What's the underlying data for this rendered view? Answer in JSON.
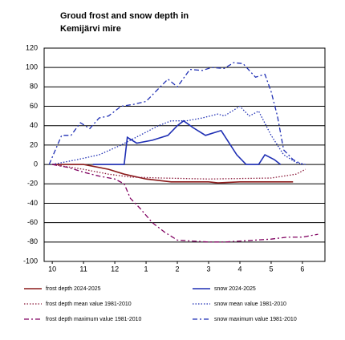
{
  "chart_data": {
    "type": "line",
    "title": "Groud frost and snow depth in Kemijärvi mire",
    "xlim": [
      -0.26,
      8.72
    ],
    "xticks": [
      {
        "value": 0,
        "label": "10"
      },
      {
        "value": 1,
        "label": "11"
      },
      {
        "value": 2,
        "label": "12"
      },
      {
        "value": 3,
        "label": "1"
      },
      {
        "value": 4,
        "label": "2"
      },
      {
        "value": 5,
        "label": "3"
      },
      {
        "value": 6,
        "label": "4"
      },
      {
        "value": 7,
        "label": "5"
      },
      {
        "value": 8,
        "label": "6"
      }
    ],
    "ylim": [
      -100,
      120
    ],
    "yticks": [
      -100,
      -80,
      -60,
      -40,
      -20,
      0,
      20,
      40,
      60,
      80,
      100,
      120
    ],
    "grid": true,
    "legend": "bottom",
    "series": [
      {
        "name": "frost depth 2024-2025",
        "color": "#8b1a1a",
        "dash": "solid",
        "x": [
          0,
          1.0,
          1.8,
          2.3,
          3.0,
          3.8,
          5.0,
          5.3,
          6.0,
          7.7
        ],
        "values": [
          0,
          0,
          -5,
          -10,
          -15,
          -18,
          -18,
          -19,
          -18,
          -18
        ]
      },
      {
        "name": "snow 2024-2025",
        "color": "#1f2fb4",
        "dash": "solid",
        "x": [
          1.3,
          2.3,
          2.4,
          2.7,
          3.2,
          3.7,
          4.0,
          4.2,
          4.5,
          4.9,
          5.4,
          5.9,
          6.2,
          6.6,
          6.8,
          7.1,
          7.3
        ],
        "values": [
          0,
          0,
          28,
          22,
          25,
          30,
          40,
          45,
          38,
          30,
          35,
          10,
          0,
          0,
          10,
          5,
          0
        ]
      },
      {
        "name": "frost depth mean value 1981-2010",
        "color": "#8b1a3a",
        "dash": "dotted",
        "x": [
          0,
          1.0,
          1.8,
          2.5,
          3.5,
          5.0,
          7.0,
          7.8,
          8.1
        ],
        "values": [
          0,
          -5,
          -10,
          -13,
          -14,
          -15,
          -14,
          -10,
          -5
        ]
      },
      {
        "name": "snow mean value 1981-2010",
        "color": "#1f2fb4",
        "dash": "dotted",
        "x": [
          0,
          0.8,
          1.5,
          2.2,
          2.8,
          3.4,
          3.8,
          4.3,
          4.8,
          5.3,
          5.5,
          6.0,
          6.3,
          6.6,
          7.0,
          7.4,
          7.8,
          8.1
        ],
        "values": [
          0,
          5,
          10,
          20,
          30,
          40,
          45,
          45,
          48,
          52,
          50,
          60,
          50,
          55,
          30,
          10,
          2,
          0
        ]
      },
      {
        "name": "frost depth maximum value 1981-2010",
        "color": "#800060",
        "dash": "dashdot",
        "x": [
          0,
          0.5,
          1.0,
          1.5,
          2.0,
          2.3,
          2.5,
          2.8,
          3.2,
          3.6,
          4.0,
          4.5,
          5.0,
          5.5,
          6.0,
          6.5,
          7.0,
          7.5,
          8.0,
          8.5
        ],
        "values": [
          0,
          -3,
          -8,
          -12,
          -15,
          -20,
          -35,
          -45,
          -60,
          -70,
          -78,
          -79,
          -80,
          -80,
          -79,
          -78,
          -77,
          -75,
          -75,
          -72
        ]
      },
      {
        "name": "snow maximum value 1981-2010",
        "color": "#1f2fb4",
        "dash": "dashdot",
        "x": [
          -0.1,
          0.3,
          0.6,
          0.9,
          1.2,
          1.5,
          1.8,
          2.2,
          2.6,
          3.0,
          3.3,
          3.7,
          4.0,
          4.4,
          4.8,
          5.1,
          5.5,
          5.8,
          6.1,
          6.5,
          6.8,
          7.0,
          7.2,
          7.4,
          7.7,
          8.0
        ],
        "values": [
          0,
          30,
          30,
          43,
          37,
          48,
          50,
          60,
          62,
          65,
          75,
          88,
          80,
          98,
          97,
          100,
          99,
          105,
          104,
          90,
          93,
          75,
          50,
          15,
          5,
          0
        ]
      }
    ]
  }
}
